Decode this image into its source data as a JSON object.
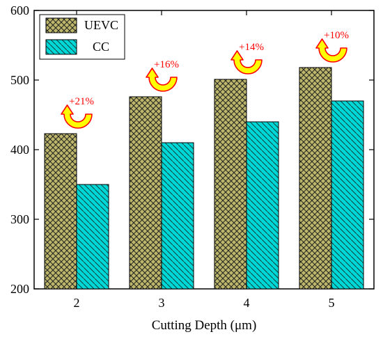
{
  "chart_data": {
    "type": "bar",
    "title": "",
    "xlabel": "Cutting Depth (μm)",
    "ylabel": "",
    "categories": [
      "2",
      "3",
      "4",
      "5"
    ],
    "ylim": [
      200,
      600
    ],
    "yticks": [
      "200",
      "300",
      "400",
      "500",
      "600"
    ],
    "grid": false,
    "legend_position": "top-left",
    "series": [
      {
        "name": "UEVC",
        "values": [
          423,
          476,
          501,
          518
        ],
        "color": "#bdb76b",
        "pattern": "cross-hatch"
      },
      {
        "name": "CC",
        "values": [
          350,
          410,
          440,
          470
        ],
        "color": "#00d8d8",
        "pattern": "diagonal-hatch"
      }
    ],
    "annotations": [
      "+21%",
      "+16%",
      "+14%",
      "+10%"
    ],
    "annotation_color": "#ff0000",
    "arrow_fill": "#ffff00",
    "arrow_stroke": "#ff0000"
  }
}
